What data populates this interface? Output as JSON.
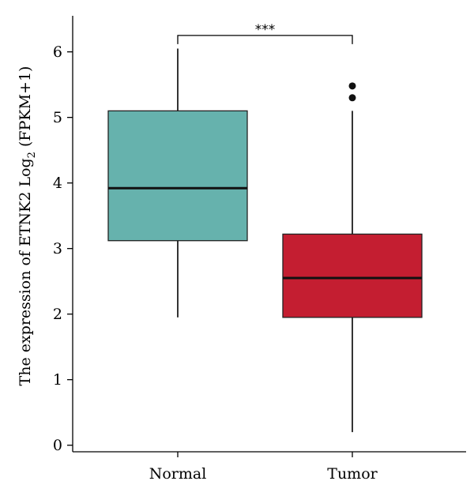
{
  "chart_data": {
    "type": "box",
    "categories": [
      "Normal",
      "Tumor"
    ],
    "boxes": [
      {
        "name": "Normal",
        "whisker_low": 1.95,
        "q1": 3.12,
        "median": 3.92,
        "q3": 5.1,
        "whisker_high": 6.05,
        "outliers": [],
        "color": "#66b2ad"
      },
      {
        "name": "Tumor",
        "whisker_low": 0.2,
        "q1": 1.95,
        "median": 2.55,
        "q3": 3.22,
        "whisker_high": 5.1,
        "outliers": [
          5.3,
          5.48
        ],
        "color": "#c41e31"
      }
    ],
    "ylabel_main": "The expression of ETNK2 Log",
    "ylabel_sub": "2",
    "ylabel_tail": " (FPKM+1)",
    "yticks": [
      0,
      1,
      2,
      3,
      4,
      5,
      6
    ],
    "ylim": [
      -0.1,
      6.55
    ],
    "significance": {
      "label": "***",
      "between": [
        "Normal",
        "Tumor"
      ],
      "level": 6.25
    }
  }
}
